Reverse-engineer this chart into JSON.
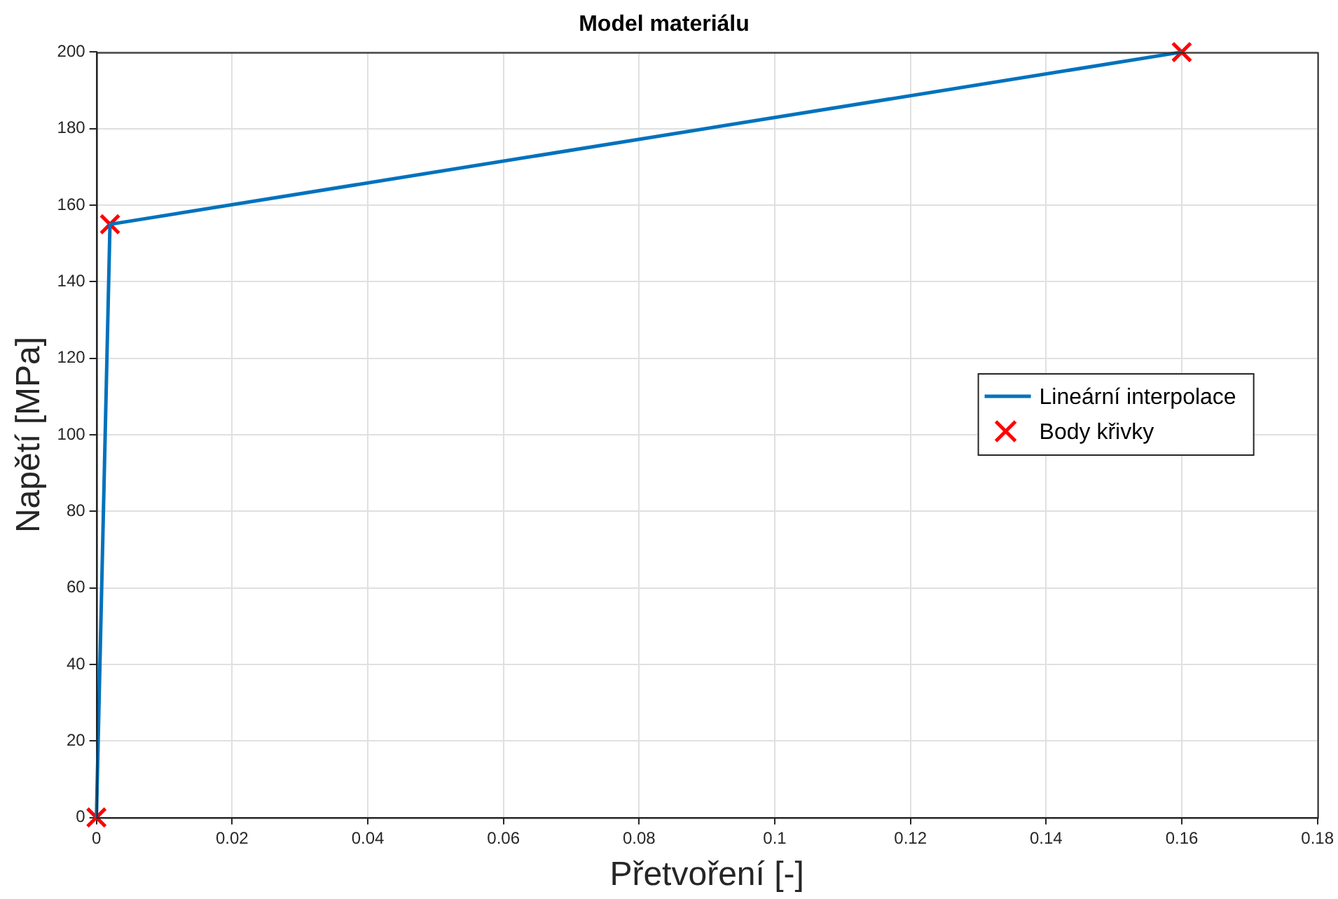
{
  "chart_data": {
    "type": "line",
    "title": "Model materiálu",
    "xlabel": "Přetvoření [-]",
    "ylabel": "Napětí [MPa]",
    "x": [
      0,
      0.002,
      0.16
    ],
    "series": [
      {
        "name": "Lineární interpolace",
        "color": "#0072bd",
        "values": [
          0,
          155,
          200
        ],
        "marker": "none",
        "line_style": "solid"
      },
      {
        "name": "Body křivky",
        "type": "scatter",
        "color": "#ff0000",
        "values": [
          0,
          155,
          200
        ],
        "marker": "cross"
      }
    ],
    "xlim": [
      0,
      0.18
    ],
    "xticks": [
      0,
      0.02,
      0.04,
      0.06,
      0.08,
      0.1,
      0.12,
      0.14,
      0.16,
      0.18
    ],
    "ylim": [
      0,
      200
    ],
    "yticks": [
      0,
      20,
      40,
      60,
      80,
      100,
      120,
      140,
      160,
      180,
      200
    ],
    "grid": true,
    "legend": "right"
  }
}
